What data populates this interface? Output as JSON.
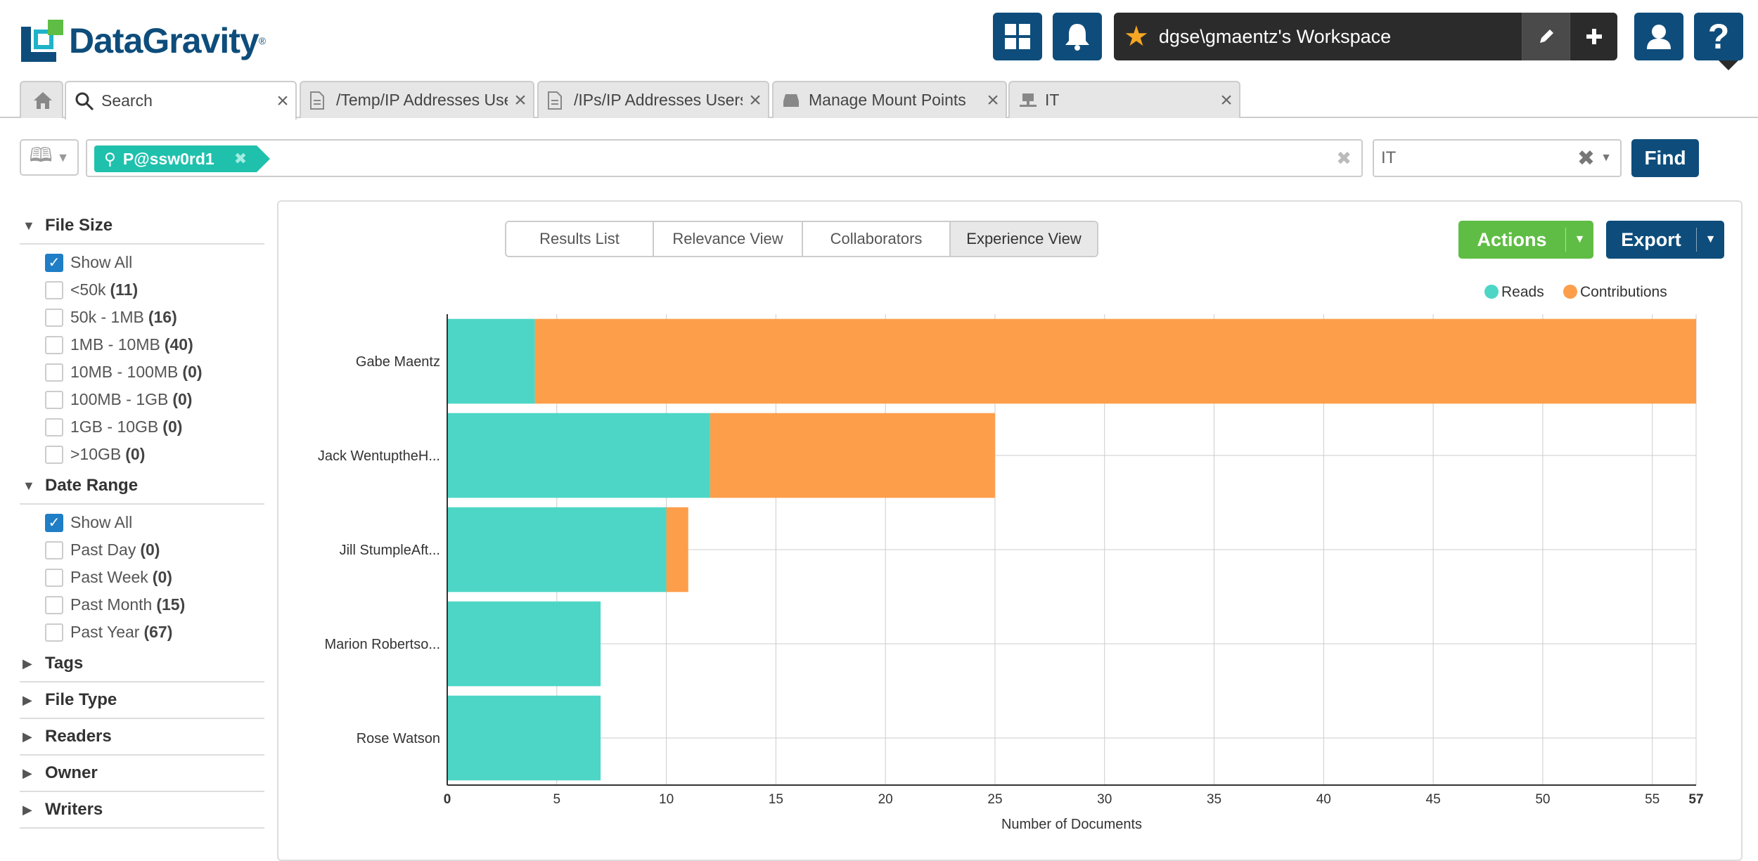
{
  "app": {
    "logo_text": "DataGravity",
    "logo_tm": "®",
    "workspace_name": "dgse\\gmaentz's Workspace"
  },
  "tabs": [
    {
      "label": "",
      "icon": "home-icon"
    },
    {
      "label": "Search",
      "icon": "search-icon"
    },
    {
      "label": "/Temp/IP Addresses Users.pdf",
      "icon": "document-icon"
    },
    {
      "label": "/IPs/IP Addresses Users.pdf",
      "icon": "document-icon"
    },
    {
      "label": "Manage Mount Points",
      "icon": "drive-icon"
    },
    {
      "label": "IT",
      "icon": "network-share-icon"
    }
  ],
  "search": {
    "chip": "P@ssw0rd1",
    "scope": "IT",
    "find_label": "Find"
  },
  "filters": {
    "file_size": {
      "title": "File Size",
      "options": [
        {
          "label": "Show All",
          "count": "",
          "checked": true
        },
        {
          "label": "<50k",
          "count": "(11)",
          "checked": false
        },
        {
          "label": "50k - 1MB",
          "count": "(16)",
          "checked": false
        },
        {
          "label": "1MB - 10MB",
          "count": "(40)",
          "checked": false
        },
        {
          "label": "10MB - 100MB",
          "count": "(0)",
          "checked": false
        },
        {
          "label": "100MB - 1GB",
          "count": "(0)",
          "checked": false
        },
        {
          "label": "1GB - 10GB",
          "count": "(0)",
          "checked": false
        },
        {
          "label": ">10GB",
          "count": "(0)",
          "checked": false
        }
      ]
    },
    "date_range": {
      "title": "Date Range",
      "options": [
        {
          "label": "Show All",
          "count": "",
          "checked": true
        },
        {
          "label": "Past Day",
          "count": "(0)",
          "checked": false
        },
        {
          "label": "Past Week",
          "count": "(0)",
          "checked": false
        },
        {
          "label": "Past Month",
          "count": "(15)",
          "checked": false
        },
        {
          "label": "Past Year",
          "count": "(67)",
          "checked": false
        }
      ]
    },
    "collapsed": [
      "Tags",
      "File Type",
      "Readers",
      "Owner",
      "Writers"
    ]
  },
  "views": {
    "tabs": [
      "Results List",
      "Relevance View",
      "Collaborators",
      "Experience View"
    ],
    "active": "Experience View",
    "actions_label": "Actions",
    "export_label": "Export"
  },
  "colors": {
    "reads": "#4dd6c6",
    "contributions": "#fd9e4b",
    "brand": "#0e4d7b",
    "actions": "#5fbd45"
  },
  "chart_data": {
    "type": "bar",
    "orientation": "horizontal",
    "stacked": true,
    "categories": [
      "Gabe Maentz",
      "Jack WentuptheH...",
      "Jill StumpleAft...",
      "Marion Robertso...",
      "Rose Watson"
    ],
    "series": [
      {
        "name": "Reads",
        "values": [
          4,
          12,
          10,
          7,
          7
        ]
      },
      {
        "name": "Contributions",
        "values": [
          53,
          13,
          1,
          0,
          0
        ]
      }
    ],
    "xlabel": "Number of Documents",
    "xlim": [
      0,
      57
    ],
    "xticks": [
      0,
      5,
      10,
      15,
      20,
      25,
      30,
      35,
      40,
      45,
      50,
      55,
      57
    ],
    "grid": true,
    "legend": "top-right"
  }
}
